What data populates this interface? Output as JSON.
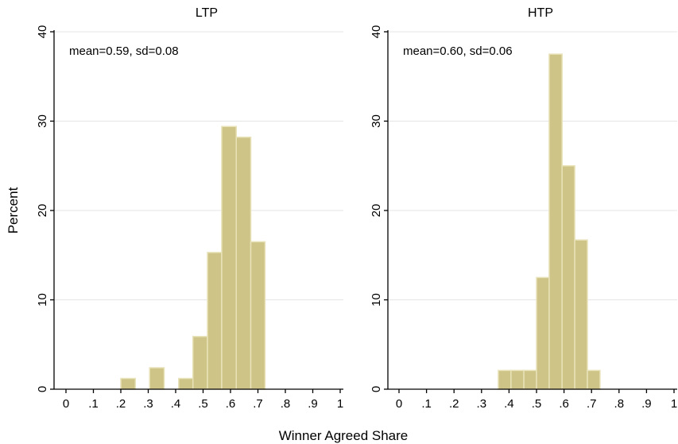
{
  "figure": {
    "ylabel": "Percent",
    "xlabel": "Winner Agreed Share"
  },
  "colors": {
    "bar_fill": "#cfc488",
    "bar_edge": "#e8e2b8",
    "grid": "#e4e4e4",
    "axis": "#000000"
  },
  "chart_data": [
    {
      "type": "bar",
      "title": "LTP",
      "annotation": "mean=0.59, sd=0.08",
      "xlabel": "Winner Agreed Share",
      "ylabel": "Percent",
      "xlim": [
        0,
        1
      ],
      "ylim": [
        0,
        40
      ],
      "grid": true,
      "xticks": [
        0,
        0.1,
        0.2,
        0.3,
        0.4,
        0.5,
        0.6,
        0.7,
        0.8,
        0.9,
        1
      ],
      "xtick_labels": [
        "0",
        ".1",
        ".2",
        ".3",
        ".4",
        ".5",
        ".6",
        ".7",
        ".8",
        ".9",
        "1"
      ],
      "yticks": [
        0,
        10,
        20,
        30,
        40
      ],
      "ytick_labels": [
        "0",
        "10",
        "20",
        "30",
        "40"
      ],
      "bin_width": 0.0526,
      "bins": [
        {
          "x0": 0.2,
          "x1": 0.253,
          "value": 1.2
        },
        {
          "x0": 0.305,
          "x1": 0.358,
          "value": 2.4
        },
        {
          "x0": 0.411,
          "x1": 0.463,
          "value": 1.2
        },
        {
          "x0": 0.463,
          "x1": 0.516,
          "value": 5.9
        },
        {
          "x0": 0.516,
          "x1": 0.568,
          "value": 15.3
        },
        {
          "x0": 0.568,
          "x1": 0.621,
          "value": 29.4
        },
        {
          "x0": 0.621,
          "x1": 0.674,
          "value": 28.2
        },
        {
          "x0": 0.674,
          "x1": 0.726,
          "value": 16.5
        }
      ]
    },
    {
      "type": "bar",
      "title": "HTP",
      "annotation": "mean=0.60, sd=0.06",
      "xlabel": "Winner Agreed Share",
      "ylabel": "Percent",
      "xlim": [
        0,
        1
      ],
      "ylim": [
        0,
        40
      ],
      "grid": true,
      "xticks": [
        0,
        0.1,
        0.2,
        0.3,
        0.4,
        0.5,
        0.6,
        0.7,
        0.8,
        0.9,
        1
      ],
      "xtick_labels": [
        "0",
        ".1",
        ".2",
        ".3",
        ".4",
        ".5",
        ".6",
        ".7",
        ".8",
        ".9",
        "1"
      ],
      "yticks": [
        0,
        10,
        20,
        30,
        40
      ],
      "ytick_labels": [
        "0",
        "10",
        "20",
        "30",
        "40"
      ],
      "bin_width": 0.0463,
      "bins": [
        {
          "x0": 0.361,
          "x1": 0.407,
          "value": 2.1
        },
        {
          "x0": 0.407,
          "x1": 0.454,
          "value": 2.1
        },
        {
          "x0": 0.454,
          "x1": 0.5,
          "value": 2.1
        },
        {
          "x0": 0.5,
          "x1": 0.546,
          "value": 12.5
        },
        {
          "x0": 0.546,
          "x1": 0.593,
          "value": 37.5
        },
        {
          "x0": 0.593,
          "x1": 0.639,
          "value": 25.0
        },
        {
          "x0": 0.639,
          "x1": 0.685,
          "value": 16.7
        },
        {
          "x0": 0.685,
          "x1": 0.731,
          "value": 2.1
        }
      ]
    }
  ]
}
